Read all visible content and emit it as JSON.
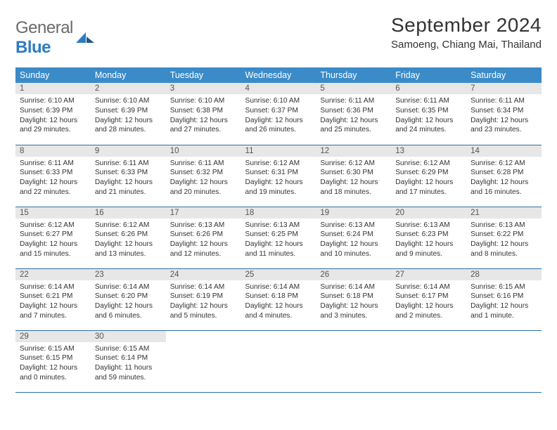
{
  "logo": {
    "word1": "General",
    "word2": "Blue"
  },
  "title": "September 2024",
  "location": "Samoeng, Chiang Mai, Thailand",
  "colors": {
    "header_bg": "#3b8bc9",
    "header_text": "#ffffff",
    "daynum_bg": "#e7e7e7",
    "row_border": "#2e6fa3",
    "logo_gray": "#6b6b6b",
    "logo_blue": "#2e7cc0",
    "text": "#333333"
  },
  "typography": {
    "title_fontsize": 28,
    "location_fontsize": 15,
    "th_fontsize": 12.5,
    "daynum_fontsize": 11.5,
    "cell_fontsize": 10.2
  },
  "daynames": [
    "Sunday",
    "Monday",
    "Tuesday",
    "Wednesday",
    "Thursday",
    "Friday",
    "Saturday"
  ],
  "weeks": [
    [
      {
        "n": "1",
        "sunrise": "Sunrise: 6:10 AM",
        "sunset": "Sunset: 6:39 PM",
        "d1": "Daylight: 12 hours",
        "d2": "and 29 minutes."
      },
      {
        "n": "2",
        "sunrise": "Sunrise: 6:10 AM",
        "sunset": "Sunset: 6:39 PM",
        "d1": "Daylight: 12 hours",
        "d2": "and 28 minutes."
      },
      {
        "n": "3",
        "sunrise": "Sunrise: 6:10 AM",
        "sunset": "Sunset: 6:38 PM",
        "d1": "Daylight: 12 hours",
        "d2": "and 27 minutes."
      },
      {
        "n": "4",
        "sunrise": "Sunrise: 6:10 AM",
        "sunset": "Sunset: 6:37 PM",
        "d1": "Daylight: 12 hours",
        "d2": "and 26 minutes."
      },
      {
        "n": "5",
        "sunrise": "Sunrise: 6:11 AM",
        "sunset": "Sunset: 6:36 PM",
        "d1": "Daylight: 12 hours",
        "d2": "and 25 minutes."
      },
      {
        "n": "6",
        "sunrise": "Sunrise: 6:11 AM",
        "sunset": "Sunset: 6:35 PM",
        "d1": "Daylight: 12 hours",
        "d2": "and 24 minutes."
      },
      {
        "n": "7",
        "sunrise": "Sunrise: 6:11 AM",
        "sunset": "Sunset: 6:34 PM",
        "d1": "Daylight: 12 hours",
        "d2": "and 23 minutes."
      }
    ],
    [
      {
        "n": "8",
        "sunrise": "Sunrise: 6:11 AM",
        "sunset": "Sunset: 6:33 PM",
        "d1": "Daylight: 12 hours",
        "d2": "and 22 minutes."
      },
      {
        "n": "9",
        "sunrise": "Sunrise: 6:11 AM",
        "sunset": "Sunset: 6:33 PM",
        "d1": "Daylight: 12 hours",
        "d2": "and 21 minutes."
      },
      {
        "n": "10",
        "sunrise": "Sunrise: 6:11 AM",
        "sunset": "Sunset: 6:32 PM",
        "d1": "Daylight: 12 hours",
        "d2": "and 20 minutes."
      },
      {
        "n": "11",
        "sunrise": "Sunrise: 6:12 AM",
        "sunset": "Sunset: 6:31 PM",
        "d1": "Daylight: 12 hours",
        "d2": "and 19 minutes."
      },
      {
        "n": "12",
        "sunrise": "Sunrise: 6:12 AM",
        "sunset": "Sunset: 6:30 PM",
        "d1": "Daylight: 12 hours",
        "d2": "and 18 minutes."
      },
      {
        "n": "13",
        "sunrise": "Sunrise: 6:12 AM",
        "sunset": "Sunset: 6:29 PM",
        "d1": "Daylight: 12 hours",
        "d2": "and 17 minutes."
      },
      {
        "n": "14",
        "sunrise": "Sunrise: 6:12 AM",
        "sunset": "Sunset: 6:28 PM",
        "d1": "Daylight: 12 hours",
        "d2": "and 16 minutes."
      }
    ],
    [
      {
        "n": "15",
        "sunrise": "Sunrise: 6:12 AM",
        "sunset": "Sunset: 6:27 PM",
        "d1": "Daylight: 12 hours",
        "d2": "and 15 minutes."
      },
      {
        "n": "16",
        "sunrise": "Sunrise: 6:12 AM",
        "sunset": "Sunset: 6:26 PM",
        "d1": "Daylight: 12 hours",
        "d2": "and 13 minutes."
      },
      {
        "n": "17",
        "sunrise": "Sunrise: 6:13 AM",
        "sunset": "Sunset: 6:26 PM",
        "d1": "Daylight: 12 hours",
        "d2": "and 12 minutes."
      },
      {
        "n": "18",
        "sunrise": "Sunrise: 6:13 AM",
        "sunset": "Sunset: 6:25 PM",
        "d1": "Daylight: 12 hours",
        "d2": "and 11 minutes."
      },
      {
        "n": "19",
        "sunrise": "Sunrise: 6:13 AM",
        "sunset": "Sunset: 6:24 PM",
        "d1": "Daylight: 12 hours",
        "d2": "and 10 minutes."
      },
      {
        "n": "20",
        "sunrise": "Sunrise: 6:13 AM",
        "sunset": "Sunset: 6:23 PM",
        "d1": "Daylight: 12 hours",
        "d2": "and 9 minutes."
      },
      {
        "n": "21",
        "sunrise": "Sunrise: 6:13 AM",
        "sunset": "Sunset: 6:22 PM",
        "d1": "Daylight: 12 hours",
        "d2": "and 8 minutes."
      }
    ],
    [
      {
        "n": "22",
        "sunrise": "Sunrise: 6:14 AM",
        "sunset": "Sunset: 6:21 PM",
        "d1": "Daylight: 12 hours",
        "d2": "and 7 minutes."
      },
      {
        "n": "23",
        "sunrise": "Sunrise: 6:14 AM",
        "sunset": "Sunset: 6:20 PM",
        "d1": "Daylight: 12 hours",
        "d2": "and 6 minutes."
      },
      {
        "n": "24",
        "sunrise": "Sunrise: 6:14 AM",
        "sunset": "Sunset: 6:19 PM",
        "d1": "Daylight: 12 hours",
        "d2": "and 5 minutes."
      },
      {
        "n": "25",
        "sunrise": "Sunrise: 6:14 AM",
        "sunset": "Sunset: 6:18 PM",
        "d1": "Daylight: 12 hours",
        "d2": "and 4 minutes."
      },
      {
        "n": "26",
        "sunrise": "Sunrise: 6:14 AM",
        "sunset": "Sunset: 6:18 PM",
        "d1": "Daylight: 12 hours",
        "d2": "and 3 minutes."
      },
      {
        "n": "27",
        "sunrise": "Sunrise: 6:14 AM",
        "sunset": "Sunset: 6:17 PM",
        "d1": "Daylight: 12 hours",
        "d2": "and 2 minutes."
      },
      {
        "n": "28",
        "sunrise": "Sunrise: 6:15 AM",
        "sunset": "Sunset: 6:16 PM",
        "d1": "Daylight: 12 hours",
        "d2": "and 1 minute."
      }
    ],
    [
      {
        "n": "29",
        "sunrise": "Sunrise: 6:15 AM",
        "sunset": "Sunset: 6:15 PM",
        "d1": "Daylight: 12 hours",
        "d2": "and 0 minutes."
      },
      {
        "n": "30",
        "sunrise": "Sunrise: 6:15 AM",
        "sunset": "Sunset: 6:14 PM",
        "d1": "Daylight: 11 hours",
        "d2": "and 59 minutes."
      },
      null,
      null,
      null,
      null,
      null
    ]
  ]
}
